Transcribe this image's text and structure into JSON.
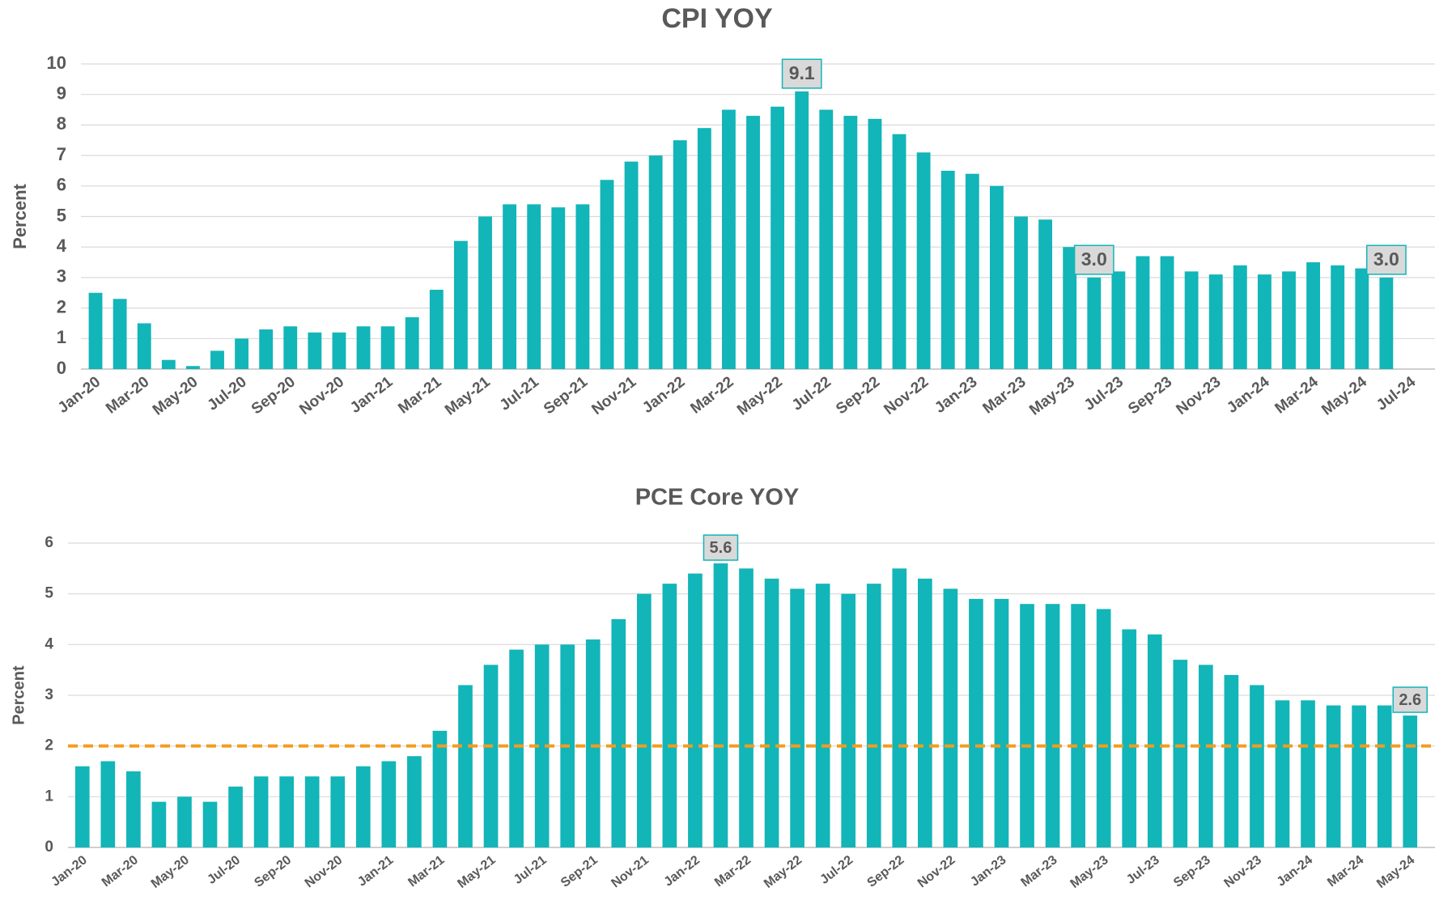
{
  "chart_data": [
    {
      "type": "bar",
      "title": "CPI YOY",
      "ylabel": "Percent",
      "color": "#12b5b8",
      "categories": [
        "Jan-20",
        null,
        "Mar-20",
        null,
        "May-20",
        null,
        "Jul-20",
        null,
        "Sep-20",
        null,
        "Nov-20",
        null,
        "Jan-21",
        null,
        "Mar-21",
        null,
        "May-21",
        null,
        "Jul-21",
        null,
        "Sep-21",
        null,
        "Nov-21",
        null,
        "Jan-22",
        null,
        "Mar-22",
        null,
        "May-22",
        null,
        "Jul-22",
        null,
        "Sep-22",
        null,
        "Nov-22",
        null,
        "Jan-23",
        null,
        "Mar-23",
        null,
        "May-23",
        null,
        "Jul-23",
        null,
        "Sep-23",
        null,
        "Nov-23",
        null,
        "Jan-24",
        null,
        "Mar-24",
        null,
        "May-24",
        null,
        "Jul-24"
      ],
      "values": [
        2.5,
        2.3,
        1.5,
        0.3,
        0.1,
        0.6,
        1.0,
        1.3,
        1.4,
        1.2,
        1.2,
        1.4,
        1.4,
        1.7,
        2.6,
        4.2,
        5.0,
        5.4,
        5.4,
        5.3,
        5.4,
        6.2,
        6.8,
        7.0,
        7.5,
        7.9,
        8.5,
        8.3,
        8.6,
        9.1,
        8.5,
        8.3,
        8.2,
        7.7,
        7.1,
        6.5,
        6.4,
        6.0,
        5.0,
        4.9,
        4.0,
        3.0,
        3.2,
        3.7,
        3.7,
        3.2,
        3.1,
        3.4,
        3.1,
        3.2,
        3.5,
        3.4,
        3.3,
        3.0,
        null
      ],
      "value_labels": [
        null,
        null,
        null,
        null,
        null,
        null,
        null,
        null,
        null,
        null,
        null,
        null,
        null,
        null,
        null,
        null,
        null,
        null,
        null,
        null,
        null,
        null,
        null,
        null,
        null,
        null,
        null,
        null,
        null,
        "9.1",
        null,
        null,
        null,
        null,
        null,
        null,
        null,
        null,
        null,
        null,
        null,
        "3.0",
        null,
        null,
        null,
        null,
        null,
        null,
        null,
        null,
        null,
        null,
        null,
        "3.0",
        null
      ],
      "ylim": [
        0,
        10
      ],
      "yticks": [
        0,
        1,
        2,
        3,
        4,
        5,
        6,
        7,
        8,
        9,
        10
      ],
      "grid": true
    },
    {
      "type": "bar",
      "title": "PCE Core YOY",
      "ylabel": "Percent",
      "color": "#12b5b8",
      "categories": [
        "Jan-20",
        null,
        "Mar-20",
        null,
        "May-20",
        null,
        "Jul-20",
        null,
        "Sep-20",
        null,
        "Nov-20",
        null,
        "Jan-21",
        null,
        "Mar-21",
        null,
        "May-21",
        null,
        "Jul-21",
        null,
        "Sep-21",
        null,
        "Nov-21",
        null,
        "Jan-22",
        null,
        "Mar-22",
        null,
        "May-22",
        null,
        "Jul-22",
        null,
        "Sep-22",
        null,
        "Nov-22",
        null,
        "Jan-23",
        null,
        "Mar-23",
        null,
        "May-23",
        null,
        "Jul-23",
        null,
        "Sep-23",
        null,
        "Nov-23",
        null,
        "Jan-24",
        null,
        "Mar-24",
        null,
        "May-24"
      ],
      "values": [
        1.6,
        1.7,
        1.5,
        0.9,
        1.0,
        0.9,
        1.2,
        1.4,
        1.4,
        1.4,
        1.4,
        1.6,
        1.7,
        1.8,
        2.3,
        3.2,
        3.6,
        3.9,
        4.0,
        4.0,
        4.1,
        4.5,
        5.0,
        5.2,
        5.4,
        5.6,
        5.5,
        5.3,
        5.1,
        5.2,
        5.0,
        5.2,
        5.5,
        5.3,
        5.1,
        4.9,
        4.9,
        4.8,
        4.8,
        4.8,
        4.7,
        4.3,
        4.2,
        3.7,
        3.6,
        3.4,
        3.2,
        2.9,
        2.9,
        2.8,
        2.8,
        2.8,
        2.6
      ],
      "value_labels": [
        null,
        null,
        null,
        null,
        null,
        null,
        null,
        null,
        null,
        null,
        null,
        null,
        null,
        null,
        null,
        null,
        null,
        null,
        null,
        null,
        null,
        null,
        null,
        null,
        null,
        "5.6",
        null,
        null,
        null,
        null,
        null,
        null,
        null,
        null,
        null,
        null,
        null,
        null,
        null,
        null,
        null,
        null,
        null,
        null,
        null,
        null,
        null,
        null,
        null,
        null,
        null,
        null,
        "2.6"
      ],
      "reference_line": {
        "value": 2,
        "color": "#f39c1f"
      },
      "ylim": [
        0,
        6
      ],
      "yticks": [
        0,
        1,
        2,
        3,
        4,
        5,
        6
      ],
      "grid": true
    }
  ]
}
